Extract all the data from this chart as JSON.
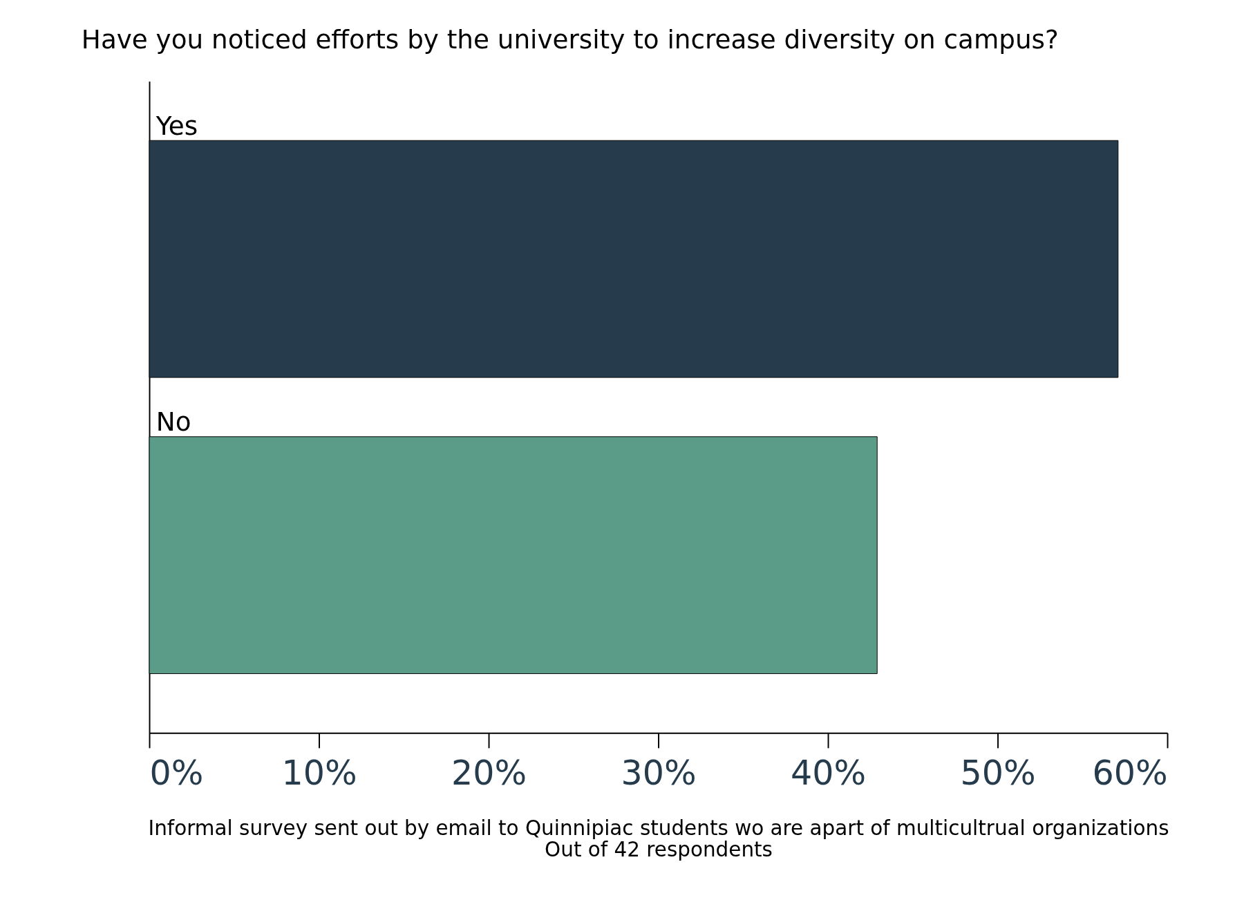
{
  "chart_data": {
    "type": "bar",
    "orientation": "horizontal",
    "title": "Have you noticed efforts by the university to increase diversity on campus?",
    "categories": [
      "Yes",
      "No"
    ],
    "values": [
      57.1,
      42.9
    ],
    "colors": [
      "#263c4d",
      "#5a9c88"
    ],
    "xlim": [
      0,
      60
    ],
    "xticks": [
      {
        "value": 0,
        "label": "0%"
      },
      {
        "value": 10,
        "label": "10%"
      },
      {
        "value": 20,
        "label": "20%"
      },
      {
        "value": 30,
        "label": "30%"
      },
      {
        "value": 40,
        "label": "40%"
      },
      {
        "value": 50,
        "label": "50%"
      },
      {
        "value": 60,
        "label": "60%"
      }
    ],
    "annotations": [
      "Informal survey sent out by email to Quinnipiac students wo are apart of multicultrual organizations",
      "Out of 42 respondents"
    ],
    "grid": false
  }
}
